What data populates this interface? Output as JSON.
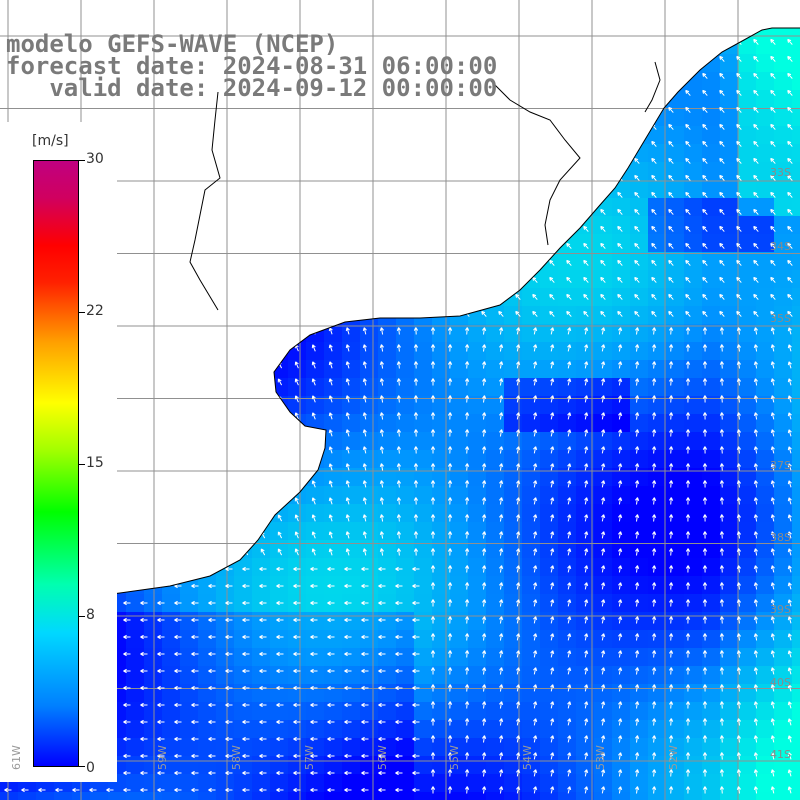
{
  "title": {
    "line1": "modelo GEFS-WAVE (NCEP)",
    "line2": "forecast date: 2024-08-31 06:00:00",
    "line3": "   valid date: 2024-09-12 00:00:00"
  },
  "legend": {
    "unit": "[m/s]",
    "ticks": [
      "30",
      "22",
      "15",
      "8",
      "0"
    ]
  },
  "lat_labels": [
    "33S",
    "34S",
    "35S",
    "37S",
    "38S",
    "39S",
    "40S",
    "41S"
  ],
  "lon_labels": [
    "61W",
    "59W",
    "58W",
    "57W",
    "56W",
    "55W",
    "54W",
    "53W",
    "52W"
  ],
  "colors": {
    "land": "#ffffff",
    "coast": "#000000",
    "grid": "#909090",
    "arrow": "#ffffff",
    "title": "#7a7a7a",
    "speed_low": "#0000ff",
    "speed_mid": "#00a0ff",
    "speed_high": "#00ffe0"
  }
}
